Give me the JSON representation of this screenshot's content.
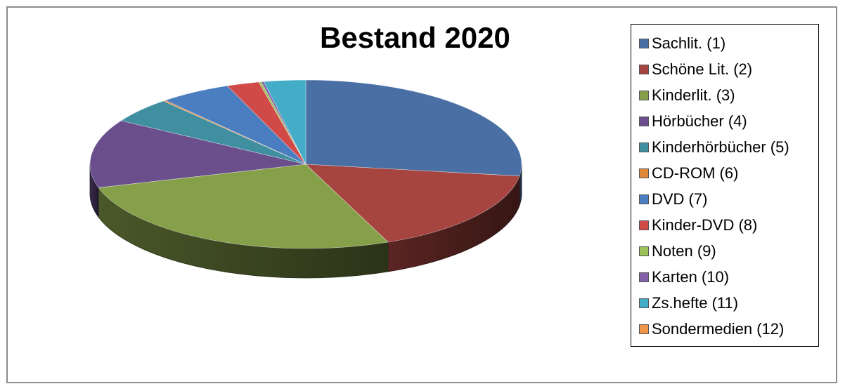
{
  "chart_data": {
    "type": "pie",
    "title": "Bestand 2020",
    "style": "3d-exploded-none",
    "legend_position": "right",
    "slices": [
      {
        "label": "Sachlit. (1)",
        "value": 28.0,
        "color": "#4a6fa5"
      },
      {
        "label": "Schöne Lit. (2)",
        "value": 17.0,
        "color": "#a64440"
      },
      {
        "label": "Kinderlit. (3)",
        "value": 27.5,
        "color": "#86a04a"
      },
      {
        "label": "Hörbücher (4)",
        "value": 13.5,
        "color": "#6a4f8c"
      },
      {
        "label": "Kinderhörbücher (5)",
        "value": 5.0,
        "color": "#3f8fa0"
      },
      {
        "label": "CD-ROM (6)",
        "value": 0.2,
        "color": "#e0873a"
      },
      {
        "label": "DVD (7)",
        "value": 5.5,
        "color": "#4a7ec0"
      },
      {
        "label": "Kinder-DVD (8)",
        "value": 2.5,
        "color": "#d04a48"
      },
      {
        "label": "Noten (9)",
        "value": 0.2,
        "color": "#9cc35a"
      },
      {
        "label": "Karten (10)",
        "value": 0.2,
        "color": "#8462a8"
      },
      {
        "label": "Zs.hefte (11)",
        "value": 3.2,
        "color": "#43acc6"
      },
      {
        "label": "Sondermedien (12)",
        "value": 0.0,
        "color": "#f0964a"
      }
    ]
  }
}
